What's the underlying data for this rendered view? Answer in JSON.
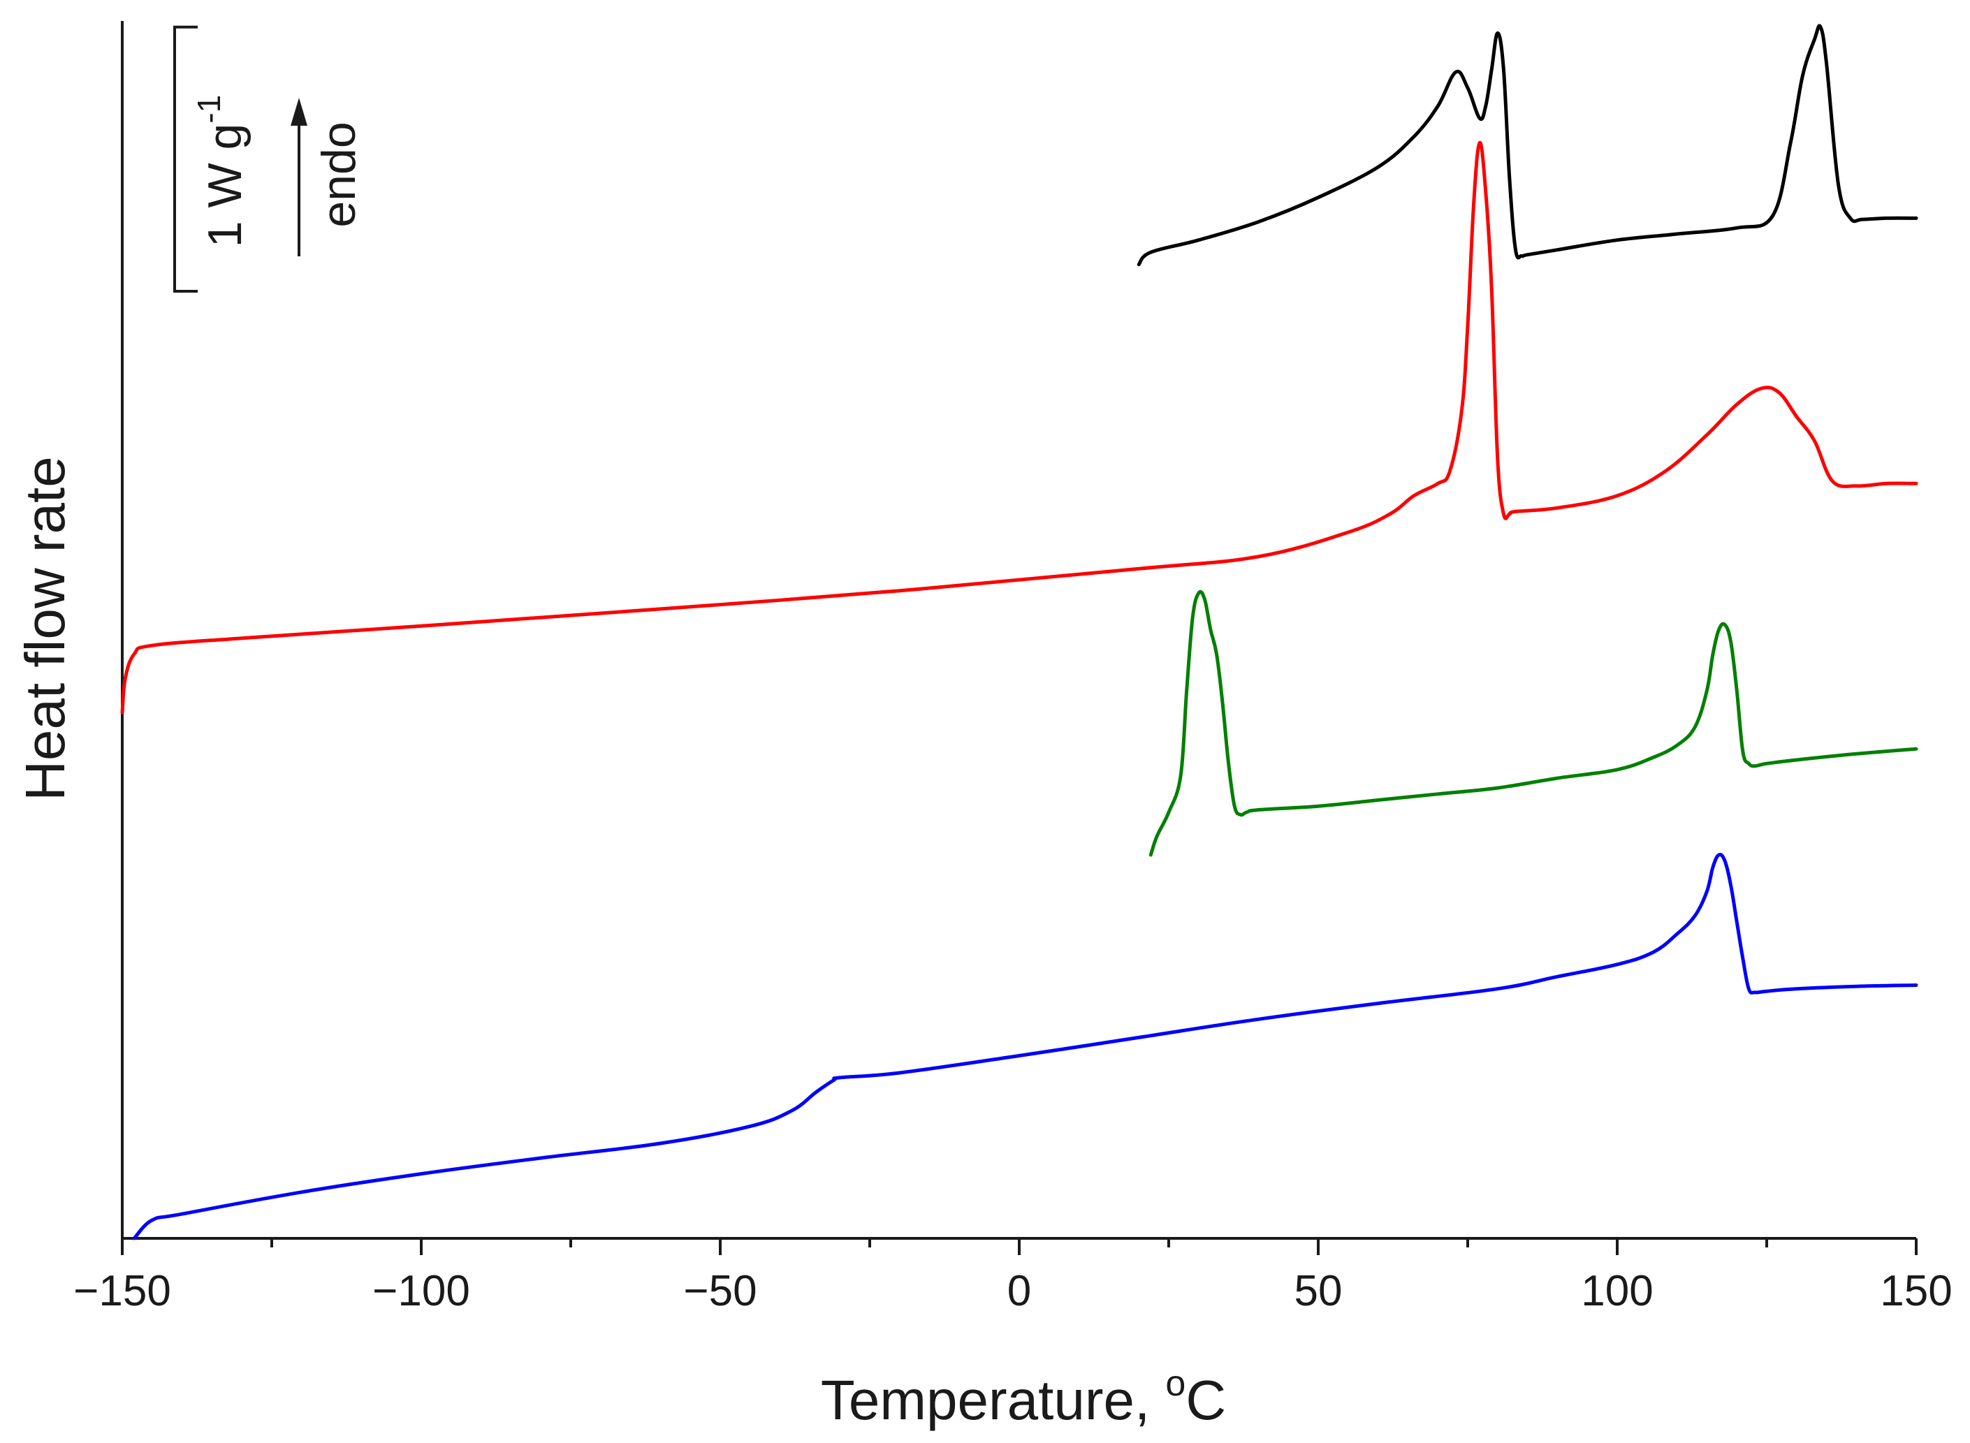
{
  "chart_data": {
    "type": "line",
    "title": "",
    "xlabel": "Temperature, ",
    "xlabel_unit_sup": "o",
    "xlabel_unit": "C",
    "ylabel": "Heat flow rate",
    "xlim": [
      -150,
      150
    ],
    "ylim": [
      0,
      10
    ],
    "xticks": [
      -150,
      -100,
      -50,
      0,
      50,
      100,
      150
    ],
    "xtick_labels": [
      "−150",
      "−100",
      "−50",
      "0",
      "50",
      "100",
      "150"
    ],
    "minor_tick_step": 25,
    "y_ticks_shown": false,
    "scale_bar": {
      "value": 1,
      "label_main": "1 W g",
      "label_sup": "-1",
      "y_from": 7.78,
      "y_to": 9.95
    },
    "direction_label": "endo",
    "series": [
      {
        "name": "black",
        "color": "#000000",
        "x": [
          20,
          22,
          30,
          40,
          50,
          60,
          66,
          70,
          73,
          75,
          77,
          78,
          79,
          80,
          81,
          82,
          83,
          84,
          85,
          90,
          100,
          110,
          120,
          126,
          129,
          131,
          133,
          134,
          135,
          137,
          139,
          141,
          145,
          150
        ],
        "y": [
          8.0,
          8.1,
          8.2,
          8.35,
          8.55,
          8.8,
          9.05,
          9.3,
          9.58,
          9.45,
          9.2,
          9.3,
          9.6,
          9.9,
          9.6,
          8.7,
          8.12,
          8.07,
          8.08,
          8.12,
          8.2,
          8.25,
          8.3,
          8.4,
          9.0,
          9.55,
          9.85,
          9.95,
          9.65,
          8.65,
          8.38,
          8.37,
          8.38,
          8.38
        ]
      },
      {
        "name": "red",
        "color": "#ff0000",
        "x": [
          -150,
          -149.5,
          -148,
          -145,
          -130,
          -100,
          -60,
          -20,
          20,
          40,
          55,
          62,
          66,
          70,
          72,
          74,
          75,
          76,
          77,
          78,
          79,
          80,
          81,
          82,
          83,
          90,
          100,
          108,
          115,
          120,
          124,
          127,
          130,
          133,
          136,
          140,
          145,
          150
        ],
        "y": [
          4.32,
          4.6,
          4.8,
          4.87,
          4.93,
          5.03,
          5.17,
          5.32,
          5.5,
          5.6,
          5.8,
          5.95,
          6.1,
          6.2,
          6.3,
          6.8,
          7.5,
          8.5,
          9.0,
          8.6,
          7.8,
          6.4,
          5.95,
          5.95,
          5.97,
          6.0,
          6.1,
          6.3,
          6.6,
          6.85,
          6.98,
          6.95,
          6.75,
          6.55,
          6.22,
          6.18,
          6.2,
          6.2
        ]
      },
      {
        "name": "green",
        "color": "#008000",
        "x": [
          22,
          23,
          25,
          27,
          28,
          29,
          30,
          31,
          32,
          33,
          34,
          35,
          36,
          37,
          38,
          40,
          50,
          60,
          70,
          80,
          90,
          100,
          106,
          110,
          113,
          115,
          116,
          117,
          118,
          119,
          120,
          121,
          122,
          123,
          125,
          130,
          140,
          150
        ],
        "y": [
          3.15,
          3.3,
          3.5,
          3.8,
          4.5,
          5.1,
          5.3,
          5.25,
          5.0,
          4.8,
          4.4,
          3.9,
          3.55,
          3.48,
          3.5,
          3.52,
          3.55,
          3.6,
          3.65,
          3.7,
          3.78,
          3.85,
          3.95,
          4.05,
          4.2,
          4.5,
          4.8,
          5.0,
          5.04,
          4.9,
          4.5,
          4.0,
          3.9,
          3.88,
          3.9,
          3.93,
          3.98,
          4.02
        ]
      },
      {
        "name": "blue",
        "color": "#0000ff",
        "x": [
          -148,
          -145,
          -140,
          -120,
          -100,
          -80,
          -60,
          -45,
          -38,
          -34,
          -31,
          -30,
          -20,
          0,
          20,
          40,
          60,
          80,
          90,
          100,
          106,
          110,
          113,
          115,
          116,
          117,
          118,
          119,
          120,
          121,
          122,
          123,
          125,
          130,
          140,
          150
        ],
        "y": [
          0.0,
          0.15,
          0.2,
          0.38,
          0.53,
          0.66,
          0.78,
          0.92,
          1.05,
          1.2,
          1.3,
          1.32,
          1.36,
          1.5,
          1.65,
          1.8,
          1.93,
          2.05,
          2.15,
          2.25,
          2.35,
          2.5,
          2.65,
          2.85,
          3.05,
          3.15,
          3.1,
          2.9,
          2.6,
          2.3,
          2.05,
          2.02,
          2.03,
          2.05,
          2.07,
          2.08
        ]
      }
    ]
  }
}
